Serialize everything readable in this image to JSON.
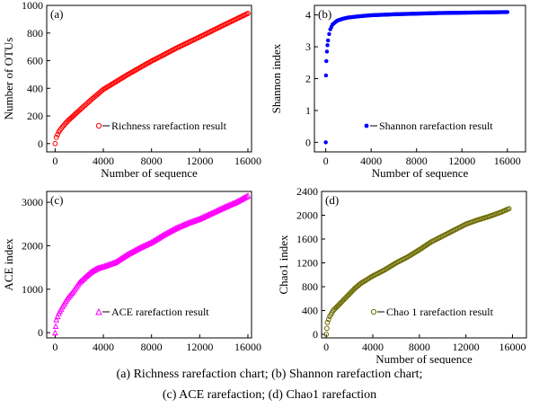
{
  "caption": {
    "line1": "(a) Richness rarefaction chart; (b) Shannon rarefaction chart;",
    "line2": "(c) ACE rarefaction; (d) Chao1  rarefaction"
  },
  "chart_data": [
    {
      "type": "scatter",
      "panel": "(a)",
      "xlabel": "Number of sequence",
      "ylabel": "Number of OTUs",
      "legend": "Richness rarefaction result",
      "legend_position": "bottom-right",
      "marker": "circle",
      "color": "#ff0000",
      "xlim": [
        -700,
        16300
      ],
      "ylim": [
        -60,
        1000
      ],
      "xticks": [
        0,
        4000,
        8000,
        12000,
        16000
      ],
      "yticks": [
        0,
        200,
        400,
        600,
        800,
        1000
      ],
      "x": [
        0,
        100,
        300,
        600,
        1000,
        1500,
        2000,
        3000,
        4000,
        5000,
        6000,
        7000,
        8000,
        9000,
        10000,
        11000,
        12000,
        13000,
        14000,
        15000,
        16000
      ],
      "y": [
        0,
        45,
        85,
        120,
        160,
        200,
        240,
        318,
        392,
        445,
        498,
        548,
        597,
        642,
        688,
        730,
        772,
        815,
        858,
        900,
        942
      ]
    },
    {
      "type": "scatter",
      "panel": "(b)",
      "xlabel": "Number of sequence",
      "ylabel": "Shannon index",
      "legend": "Shannon rarefaction result",
      "legend_position": "bottom-right",
      "marker": "circle",
      "color": "#0000ff",
      "xlim": [
        -1000,
        17600
      ],
      "ylim": [
        -0.3,
        4.3
      ],
      "xticks": [
        0,
        4000,
        8000,
        12000,
        16000
      ],
      "yticks": [
        0,
        1,
        2,
        3,
        4
      ],
      "x": [
        0,
        20,
        50,
        100,
        150,
        200,
        300,
        400,
        600,
        1000,
        1500,
        2000,
        3000,
        4000,
        6000,
        8000,
        10000,
        12000,
        14000,
        16000
      ],
      "y": [
        0,
        2.1,
        2.55,
        2.85,
        3.05,
        3.2,
        3.4,
        3.55,
        3.7,
        3.82,
        3.88,
        3.92,
        3.96,
        3.99,
        4.02,
        4.04,
        4.06,
        4.07,
        4.08,
        4.09
      ]
    },
    {
      "type": "scatter",
      "panel": "(c)",
      "xlabel": "",
      "ylabel": "ACE index",
      "legend": "ACE rarefaction result",
      "legend_position": "bottom-right",
      "marker": "triangle",
      "color": "#ff00ff",
      "xlim": [
        -700,
        16300
      ],
      "ylim": [
        -120,
        3250
      ],
      "xticks": [
        0,
        4000,
        8000,
        12000,
        16000
      ],
      "yticks": [
        0,
        1000,
        2000,
        3000
      ],
      "x": [
        0,
        50,
        100,
        300,
        600,
        1000,
        1500,
        2000,
        2500,
        3000,
        3500,
        4000,
        5000,
        6000,
        7000,
        8000,
        9000,
        10000,
        11000,
        12000,
        13000,
        14000,
        15000,
        16000
      ],
      "y": [
        0,
        150,
        300,
        450,
        600,
        780,
        950,
        1150,
        1280,
        1400,
        1480,
        1520,
        1620,
        1800,
        1950,
        2080,
        2250,
        2400,
        2520,
        2620,
        2750,
        2880,
        3000,
        3150
      ]
    },
    {
      "type": "scatter",
      "panel": "(d)",
      "xlabel": "Number of sequence",
      "ylabel": "Chao1 index",
      "legend": "Chao 1 rarefaction result",
      "legend_position": "bottom-right",
      "marker": "circle",
      "color": "#6b6b00",
      "xlim": [
        -400,
        17200
      ],
      "ylim": [
        -60,
        2400
      ],
      "xticks": [
        0,
        4000,
        8000,
        12000,
        16000
      ],
      "yticks": [
        0,
        400,
        800,
        1200,
        1600,
        2000,
        2400
      ],
      "x": [
        0,
        50,
        100,
        300,
        600,
        1000,
        1500,
        2000,
        2500,
        3000,
        4000,
        5000,
        6000,
        7000,
        8000,
        9000,
        10000,
        11000,
        12000,
        13000,
        14000,
        15000,
        15700
      ],
      "y": [
        0,
        100,
        200,
        300,
        400,
        480,
        580,
        680,
        780,
        860,
        980,
        1080,
        1200,
        1300,
        1420,
        1550,
        1650,
        1750,
        1850,
        1920,
        1980,
        2050,
        2110
      ]
    }
  ]
}
